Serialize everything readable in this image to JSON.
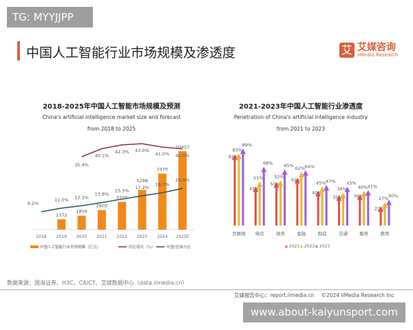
{
  "watermark_top": "TG: MYYJJPP",
  "header": {
    "title": "中国人工智能行业市场规模及渗透度"
  },
  "logo": {
    "mark": "艾",
    "cn": "艾媒咨询",
    "en": "iiMedia Research"
  },
  "colors": {
    "accent": "#d9603b",
    "bar": "#f08a1c",
    "growth": "#8b2e4b",
    "share": "#1f5a63",
    "y2021": "#e0504a",
    "y2022": "#f0b428",
    "y2023": "#9a5ee0"
  },
  "chart_data": [
    {
      "type": "bar",
      "title": "2018-2025年中国人工智能市场规模及预测",
      "subtitle_en": "China's artificial intelligence market size and forecast",
      "subtitle_en2": "from 2018 to 2025",
      "categories": [
        "2018",
        "2019",
        "2020",
        "2021",
        "2022",
        "2023",
        "2024",
        "2025E"
      ],
      "series": [
        {
          "name": "中国人工智能行业市场规模（亿元）",
          "kind": "bar",
          "values": [
            null,
            1372,
            1858,
            2603,
            3705,
            5298,
            7470,
            10457
          ]
        },
        {
          "name": "同比增长（%）",
          "kind": "line",
          "values": [
            null,
            null,
            35.4,
            40.1,
            42.3,
            43.0,
            41.0,
            40.0
          ]
        },
        {
          "name": "中国/全球占比",
          "kind": "line",
          "values": [
            9.2,
            11.0,
            12.2,
            13.8,
            15.5,
            17.2,
            18.7,
            20.9
          ]
        }
      ],
      "legend": "bottom"
    },
    {
      "type": "bar",
      "title": "2021-2023年中国人工智能行业渗透度",
      "subtitle_en": "Penetration of China's artificial intelligence industry",
      "subtitle_en2": "from 2021 to 2023",
      "categories": [
        "互联网",
        "电信",
        "政务",
        "金融",
        "制造",
        "交通",
        "服务",
        "教育"
      ],
      "series": [
        {
          "name": "2021",
          "values": [
            82,
            45,
            50,
            55,
            40,
            35,
            36,
            22
          ]
        },
        {
          "name": "2022",
          "values": [
            83,
            51,
            52,
            62,
            45,
            38,
            40,
            27
          ]
        },
        {
          "name": "2023",
          "values": [
            89,
            68,
            65,
            64,
            47,
            45,
            41,
            30
          ]
        }
      ],
      "unit": "%",
      "legend": "bottom"
    }
  ],
  "footer": {
    "source": "数据来源：国海证券、H3C、CAICT、艾媒数据中心（data.iimedia.cn）",
    "report": "艾媒报告中心：report.iimedia.cn　 ©2024 iiMedia Research Inc"
  },
  "watermark_bottom": "www.about-kaiyunsport.com"
}
